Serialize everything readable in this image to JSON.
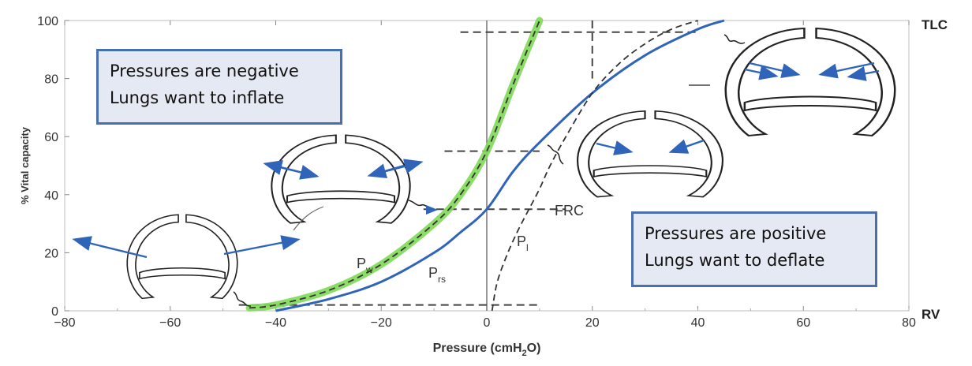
{
  "chart_data": {
    "type": "line",
    "xlabel": "Pressure (cmH2O)",
    "ylabel": "% Vital capacity",
    "xlim": [
      -80,
      80
    ],
    "ylim": [
      0,
      100
    ],
    "x_ticks": [
      "−80",
      "−60",
      "−40",
      "−20",
      "0",
      "20",
      "40",
      "60",
      "80"
    ],
    "y_ticks": [
      "0",
      "20",
      "40",
      "60",
      "80",
      "100"
    ],
    "right_labels": {
      "top": "TLC",
      "bottom": "RV"
    },
    "series": [
      {
        "name": "Prs",
        "label_main": "P",
        "label_sub": "rs",
        "style": "solid",
        "color": "#2f64b8",
        "x": [
          -40,
          -30,
          -20,
          -10,
          -5,
          0,
          5,
          10,
          20,
          30,
          40,
          45
        ],
        "y": [
          0,
          4,
          10,
          20,
          27,
          35,
          48,
          58,
          75,
          88,
          97,
          100
        ]
      },
      {
        "name": "Pw",
        "label_main": "P",
        "label_sub": "w",
        "style": "dashed",
        "color": "#333333",
        "x": [
          -45,
          -40,
          -30,
          -20,
          -10,
          -5,
          0,
          5,
          10
        ],
        "y": [
          1,
          2,
          7,
          16,
          30,
          40,
          55,
          78,
          100
        ]
      },
      {
        "name": "Pl",
        "label_main": "P",
        "label_sub": "l",
        "style": "dashed",
        "color": "#333333",
        "x": [
          1,
          2,
          4,
          6,
          8,
          10,
          12,
          15,
          20,
          25,
          30,
          35,
          40
        ],
        "y": [
          0,
          10,
          20,
          28,
          35,
          42,
          50,
          60,
          75,
          85,
          92,
          97,
          100
        ]
      }
    ],
    "annotations": {
      "frc": "FRC"
    },
    "callouts": [
      {
        "lines": [
          "Pressures are negative",
          "Lungs want to inflate"
        ]
      },
      {
        "lines": [
          "Pressures are positive",
          "Lungs want to deflate"
        ]
      }
    ],
    "colors": {
      "prs": "#2f64b8",
      "highlight": "#7ed957",
      "callout_border": "#4a6fae",
      "callout_fill": "#e5e9f3",
      "arrow": "#2f64b8"
    },
    "grid": false
  }
}
